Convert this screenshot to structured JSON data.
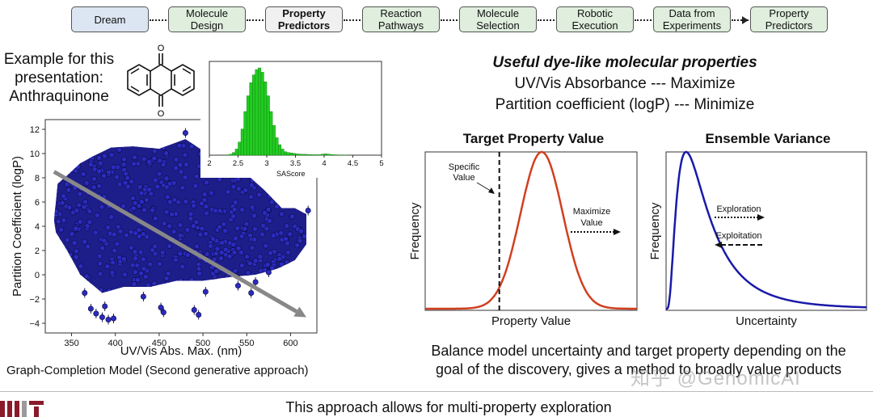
{
  "pipeline": {
    "steps": [
      {
        "label": "Dream",
        "style": "blue"
      },
      {
        "label": "Molecule\nDesign",
        "style": "green"
      },
      {
        "label": "Property\nPredictors",
        "style": "bold"
      },
      {
        "label": "Reaction\nPathways",
        "style": "green"
      },
      {
        "label": "Molecule\nSelection",
        "style": "green"
      },
      {
        "label": "Robotic\nExecution",
        "style": "green"
      },
      {
        "label": "Data from\nExperiments",
        "style": "green"
      },
      {
        "label": "Property\nPredictors",
        "style": "green"
      }
    ]
  },
  "example": {
    "line1": "Example for this",
    "line2": "presentation:",
    "line3": "Anthraquinone",
    "molecule_icon": "anthraquinone-structure"
  },
  "properties": {
    "heading": "Useful dye-like molecular properties",
    "line1": "UV/Vis Absorbance  ---  Maximize",
    "line2": "Partition coefficient (logP)  ---  Minimize"
  },
  "scatter": {
    "xlabel": "UV/Vis Abs. Max. (nm)",
    "ylabel": "Partition Coefficient (logP)",
    "xticks": [
      "350",
      "400",
      "450",
      "500",
      "550",
      "600"
    ],
    "yticks": [
      "−4",
      "−2",
      "0",
      "2",
      "4",
      "6",
      "8",
      "10",
      "12"
    ],
    "caption": "Graph-Completion Model (Second generative approach)"
  },
  "histogram": {
    "xlabel": "SAScore",
    "xticks": [
      "2",
      "2.5",
      "3",
      "3.5",
      "4",
      "4.5",
      "5"
    ]
  },
  "target_panel": {
    "title": "Target Property Value",
    "ylabel": "Frequency",
    "xlabel": "Property Value",
    "annot_specific_1": "Specific",
    "annot_specific_2": "Value",
    "annot_max_1": "Maximize",
    "annot_max_2": "Value"
  },
  "variance_panel": {
    "title": "Ensemble Variance",
    "ylabel": "Frequency",
    "xlabel": "Uncertainty",
    "annot_explore": "Exploration",
    "annot_exploit": "Exploitation"
  },
  "chart_data": [
    {
      "type": "scatter",
      "title": "",
      "xlabel": "UV/Vis Abs. Max. (nm)",
      "ylabel": "Partition Coefficient (logP)",
      "xlim": [
        320,
        630
      ],
      "ylim": [
        -4.8,
        12.8
      ],
      "trend_arrow": {
        "from": [
          330,
          8.5
        ],
        "to": [
          618,
          -3.5
        ],
        "color": "#888888"
      },
      "point_color": "#2b2bbf",
      "cloud_boundary": [
        [
          330,
          4.5
        ],
        [
          334,
          7.5
        ],
        [
          345,
          8.2
        ],
        [
          360,
          9.2
        ],
        [
          375,
          9.8
        ],
        [
          395,
          10.5
        ],
        [
          420,
          10.6
        ],
        [
          450,
          10.4
        ],
        [
          480,
          11.2
        ],
        [
          505,
          10.0
        ],
        [
          525,
          9.4
        ],
        [
          545,
          8.6
        ],
        [
          570,
          7.0
        ],
        [
          590,
          5.5
        ],
        [
          605,
          5.5
        ],
        [
          618,
          5.0
        ],
        [
          618,
          2.5
        ],
        [
          605,
          1.2
        ],
        [
          585,
          0.5
        ],
        [
          560,
          0.0
        ],
        [
          530,
          -0.2
        ],
        [
          500,
          -0.5
        ],
        [
          470,
          -0.5
        ],
        [
          440,
          -1.0
        ],
        [
          410,
          -1.0
        ],
        [
          385,
          -1.5
        ],
        [
          360,
          0.0
        ],
        [
          345,
          2.0
        ],
        [
          332,
          3.5
        ]
      ],
      "outliers": [
        [
          480,
          11.7
        ],
        [
          355,
          3.8
        ],
        [
          365,
          -1.5
        ],
        [
          372,
          -2.8
        ],
        [
          378,
          -3.2
        ],
        [
          385,
          -3.5
        ],
        [
          392,
          -3.7
        ],
        [
          398,
          -3.6
        ],
        [
          388,
          -2.6
        ],
        [
          452,
          -2.7
        ],
        [
          455,
          -3.1
        ],
        [
          490,
          -2.9
        ],
        [
          495,
          -3.3
        ],
        [
          432,
          -1.8
        ],
        [
          555,
          -1.5
        ],
        [
          560,
          -0.6
        ],
        [
          503,
          -1.4
        ],
        [
          540,
          -0.9
        ],
        [
          612,
          3.6
        ],
        [
          620,
          5.3
        ],
        [
          575,
          0.2
        ]
      ]
    },
    {
      "type": "bar",
      "title": "",
      "xlabel": "SAScore",
      "ylabel": "",
      "xlim": [
        2,
        5
      ],
      "bin_edges": [
        2.3,
        2.35,
        2.4,
        2.45,
        2.5,
        2.55,
        2.6,
        2.65,
        2.7,
        2.75,
        2.8,
        2.85,
        2.9,
        2.95,
        3.0,
        3.05,
        3.1,
        3.15,
        3.2,
        3.25,
        3.3,
        3.35,
        3.4,
        3.45,
        3.5,
        3.55,
        3.6,
        3.65,
        3.7,
        3.75,
        3.8,
        3.85,
        3.9,
        3.95,
        4.0,
        4.05,
        4.1,
        4.15,
        4.2,
        4.25,
        4.3,
        4.35,
        4.4
      ],
      "values": [
        0.4,
        1.2,
        3,
        7,
        15,
        30,
        50,
        68,
        83,
        92,
        98,
        100,
        95,
        84,
        68,
        50,
        34,
        20,
        12,
        7,
        4,
        3,
        2.5,
        2,
        1.5,
        1.2,
        1,
        1,
        0.8,
        0.6,
        0.5,
        0.5,
        0.5,
        1.2,
        1.5,
        1.2,
        0.8,
        0.5,
        0.4,
        0.3,
        0.3,
        0.2
      ],
      "color": "#22cc22"
    },
    {
      "type": "line",
      "title": "Target Property Value",
      "xlabel": "Property Value",
      "ylabel": "Frequency",
      "series": [
        {
          "shape": "gaussian",
          "mean": 0.55,
          "sd": 0.1,
          "color": "#d04020"
        }
      ],
      "specific_value_marker": 0.35
    },
    {
      "type": "line",
      "title": "Ensemble Variance",
      "xlabel": "Uncertainty",
      "ylabel": "Frequency",
      "series": [
        {
          "shape": "lognormal",
          "mode": 0.1,
          "color": "#1a1aa8"
        }
      ]
    }
  ],
  "balance": {
    "line1": "Balance model uncertainty and target property depending on the",
    "line2": "goal of the discovery, gives a method to broadly value products"
  },
  "footer": {
    "text": "This approach allows for multi-property exploration",
    "logo_icon": "mit-logo",
    "watermark": "知乎 @GenomicAI"
  },
  "colors": {
    "scatter_points": "#2b2bbf",
    "histogram_bars": "#22cc22",
    "gaussian_curve": "#d04020",
    "variance_curve": "#1a1aa8"
  }
}
